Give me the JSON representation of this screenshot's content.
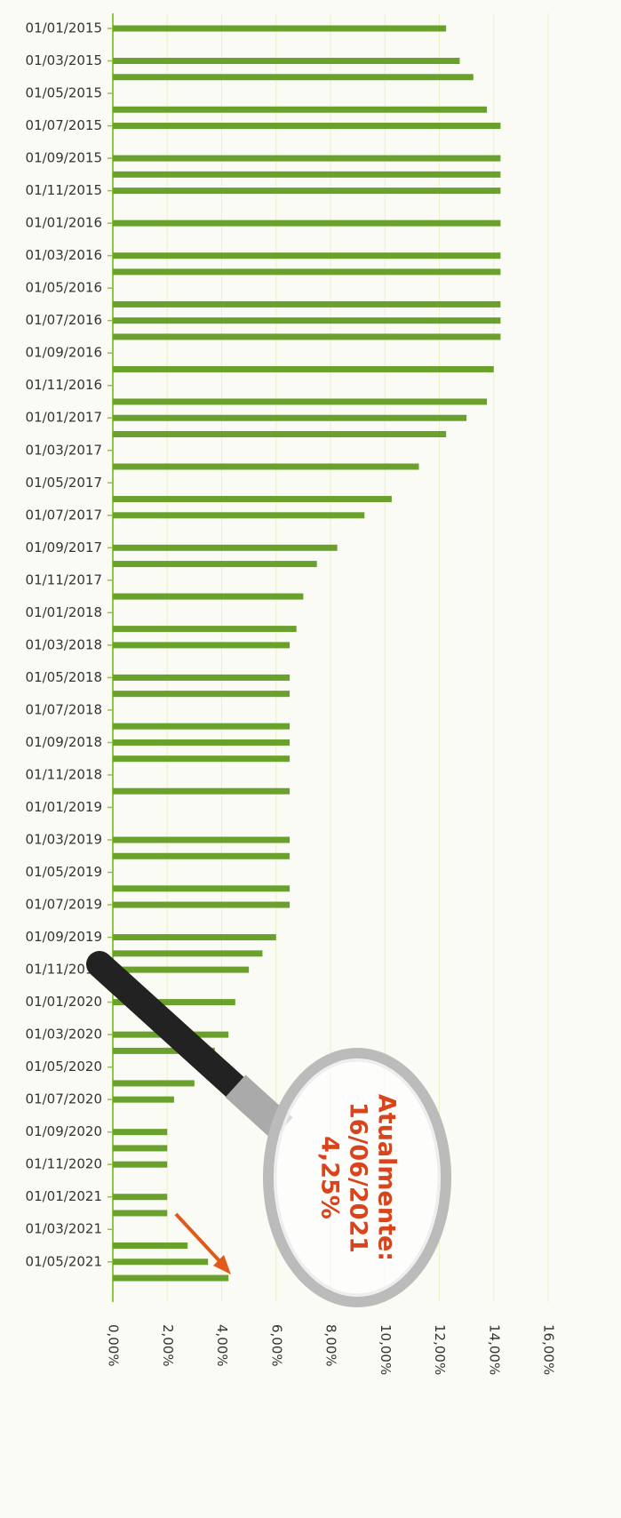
{
  "chart_data": {
    "type": "hbar",
    "categories": [
      "01/01/2015",
      null,
      "01/03/2015",
      null,
      "01/05/2015",
      null,
      "01/07/2015",
      null,
      "01/09/2015",
      null,
      "01/11/2015",
      null,
      "01/01/2016",
      null,
      "01/03/2016",
      null,
      "01/05/2016",
      null,
      "01/07/2016",
      null,
      "01/09/2016",
      null,
      "01/11/2016",
      null,
      "01/01/2017",
      null,
      "01/03/2017",
      null,
      "01/05/2017",
      null,
      "01/07/2017",
      null,
      "01/09/2017",
      null,
      "01/11/2017",
      null,
      "01/01/2018",
      null,
      "01/03/2018",
      null,
      "01/05/2018",
      null,
      "01/07/2018",
      null,
      "01/09/2018",
      null,
      "01/11/2018",
      null,
      "01/01/2019",
      null,
      "01/03/2019",
      null,
      "01/05/2019",
      null,
      "01/07/2019",
      null,
      "01/09/2019",
      null,
      "01/11/2019",
      null,
      "01/01/2020",
      null,
      "01/03/2020",
      null,
      "01/05/2020",
      null,
      "01/07/2020",
      null,
      "01/09/2020",
      null,
      "01/11/2020",
      null,
      "01/01/2021",
      null,
      "01/03/2021",
      null,
      "01/05/2021",
      null
    ],
    "values": [
      12.25,
      null,
      12.75,
      13.25,
      null,
      13.75,
      14.25,
      null,
      14.25,
      14.25,
      14.25,
      null,
      14.25,
      null,
      14.25,
      14.25,
      null,
      14.25,
      14.25,
      14.25,
      null,
      14.0,
      null,
      13.75,
      13.0,
      12.25,
      null,
      11.25,
      null,
      10.25,
      9.25,
      null,
      8.25,
      7.5,
      null,
      7.0,
      null,
      6.75,
      6.5,
      null,
      6.5,
      6.5,
      null,
      6.5,
      6.5,
      6.5,
      null,
      6.5,
      null,
      null,
      6.5,
      6.5,
      null,
      6.5,
      6.5,
      null,
      6.0,
      5.5,
      5.0,
      null,
      4.5,
      null,
      4.25,
      3.75,
      null,
      3.0,
      2.25,
      null,
      2.0,
      2.0,
      2.0,
      null,
      2.0,
      2.0,
      null,
      2.75,
      3.5,
      4.25
    ],
    "color": "#6aa12c",
    "xlim": [
      0,
      16
    ],
    "xticks": [
      {
        "value": 0,
        "label": "0,00%"
      },
      {
        "value": 2,
        "label": "2,00%"
      },
      {
        "value": 4,
        "label": "4,00%"
      },
      {
        "value": 6,
        "label": "6,00%"
      },
      {
        "value": 8,
        "label": "8,00%"
      },
      {
        "value": 10,
        "label": "10,00%"
      },
      {
        "value": 12,
        "label": "12,00%"
      },
      {
        "value": 14,
        "label": "14,00%"
      },
      {
        "value": 16,
        "label": "16,00%"
      }
    ],
    "grid": true,
    "annotation": [
      "Atualmente:",
      "16/06/2021",
      "4,25%"
    ]
  }
}
